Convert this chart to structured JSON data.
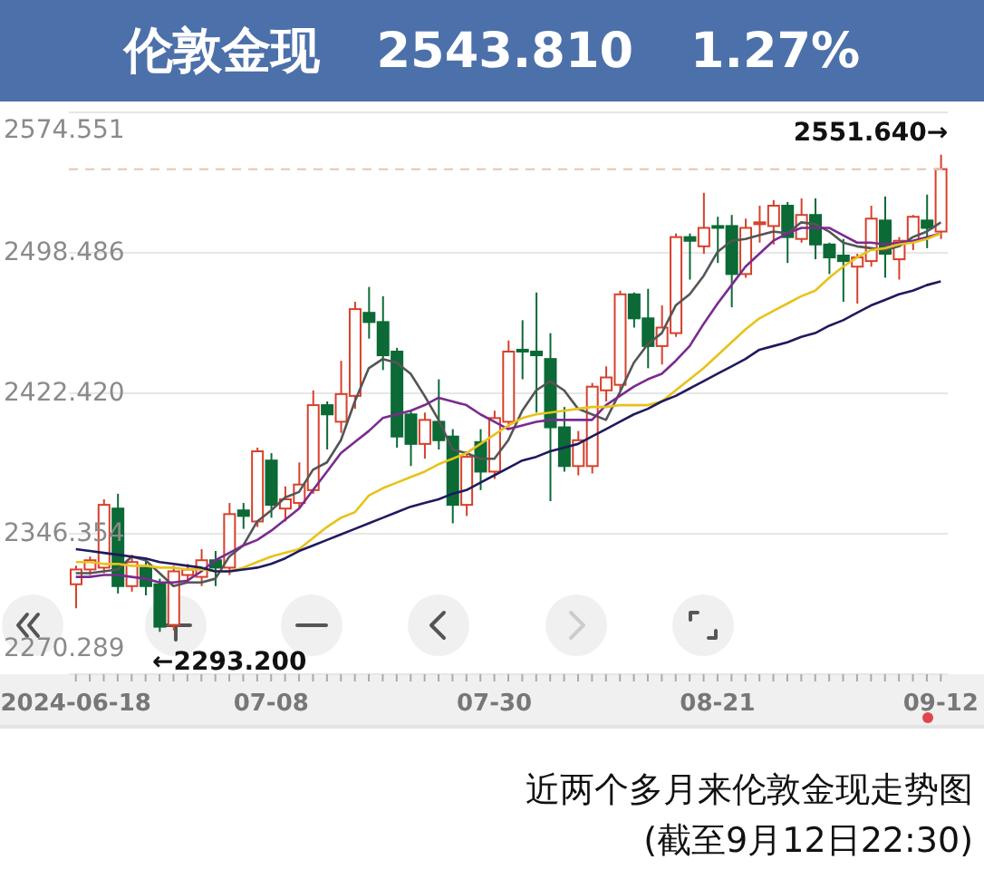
{
  "chart_data": {
    "type": "candlestick",
    "title": "伦敦金现 2543.810 1.27%",
    "categories": [
      "2024-06-18",
      null,
      null,
      null,
      null,
      null,
      null,
      null,
      null,
      null,
      null,
      null,
      null,
      null,
      "07-08",
      null,
      null,
      null,
      null,
      null,
      null,
      null,
      null,
      null,
      null,
      null,
      null,
      null,
      null,
      null,
      "07-30",
      null,
      null,
      null,
      null,
      null,
      null,
      null,
      null,
      null,
      null,
      null,
      null,
      null,
      null,
      null,
      "08-21",
      null,
      null,
      null,
      null,
      null,
      null,
      null,
      null,
      null,
      null,
      null,
      null,
      null,
      null,
      null,
      "09-12"
    ],
    "ohlc": [
      [
        2319,
        2329,
        2306,
        2327
      ],
      [
        2327,
        2334,
        2324,
        2332
      ],
      [
        2328,
        2365,
        2325,
        2362
      ],
      [
        2360,
        2368,
        2314,
        2318
      ],
      [
        2318,
        2335,
        2315,
        2331
      ],
      [
        2328,
        2332,
        2313,
        2318
      ],
      [
        2319,
        2322,
        2293.2,
        2296
      ],
      [
        2297,
        2329,
        2294,
        2326
      ],
      [
        2324,
        2330,
        2320,
        2327
      ],
      [
        2323,
        2338,
        2318,
        2332
      ],
      [
        2332,
        2337,
        2318,
        2328
      ],
      [
        2328,
        2363,
        2324,
        2357
      ],
      [
        2359,
        2363,
        2349,
        2356
      ],
      [
        2353,
        2393,
        2350,
        2391
      ],
      [
        2386,
        2390,
        2355,
        2362
      ],
      [
        2360,
        2372,
        2353,
        2365
      ],
      [
        2363,
        2385,
        2360,
        2373
      ],
      [
        2370,
        2424,
        2368,
        2416
      ],
      [
        2416,
        2418,
        2392,
        2411
      ],
      [
        2407,
        2440,
        2401,
        2422
      ],
      [
        2421,
        2472,
        2414,
        2468
      ],
      [
        2466,
        2480,
        2452,
        2461
      ],
      [
        2461,
        2475,
        2435,
        2443
      ],
      [
        2445,
        2447,
        2393,
        2399
      ],
      [
        2411,
        2413,
        2383,
        2395
      ],
      [
        2395,
        2412,
        2387,
        2408
      ],
      [
        2407,
        2430,
        2392,
        2397
      ],
      [
        2399,
        2403,
        2352,
        2362
      ],
      [
        2362,
        2391,
        2356,
        2388
      ],
      [
        2396,
        2403,
        2370,
        2380
      ],
      [
        2380,
        2413,
        2376,
        2409
      ],
      [
        2407,
        2451,
        2404,
        2445
      ],
      [
        2446,
        2462,
        2430,
        2445
      ],
      [
        2445,
        2477,
        2412,
        2443
      ],
      [
        2441,
        2455,
        2364,
        2404
      ],
      [
        2404,
        2415,
        2380,
        2383
      ],
      [
        2383,
        2402,
        2378,
        2397
      ],
      [
        2383,
        2428,
        2379,
        2426
      ],
      [
        2424,
        2437,
        2418,
        2431
      ],
      [
        2427,
        2478,
        2424,
        2476
      ],
      [
        2476,
        2477,
        2458,
        2463
      ],
      [
        2463,
        2479,
        2436,
        2448
      ],
      [
        2448,
        2470,
        2438,
        2458
      ],
      [
        2455,
        2509,
        2453,
        2507
      ],
      [
        2507,
        2509,
        2484,
        2505
      ],
      [
        2502,
        2531,
        2498,
        2512
      ],
      [
        2513,
        2518,
        2493,
        2512
      ],
      [
        2513,
        2519,
        2469,
        2487
      ],
      [
        2487,
        2517,
        2485,
        2512
      ],
      [
        2514,
        2524,
        2504,
        2515
      ],
      [
        2513,
        2527,
        2503,
        2524
      ],
      [
        2524,
        2526,
        2493,
        2507
      ],
      [
        2506,
        2528,
        2504,
        2519
      ],
      [
        2519,
        2528,
        2495,
        2503
      ],
      [
        2503,
        2504,
        2487,
        2496
      ],
      [
        2497,
        2506,
        2472,
        2494
      ],
      [
        2491,
        2498,
        2471,
        2496
      ],
      [
        2494,
        2524,
        2491,
        2517
      ],
      [
        2516,
        2529,
        2485,
        2498
      ],
      [
        2495,
        2507,
        2484,
        2505
      ],
      [
        2505,
        2519,
        2500,
        2518
      ],
      [
        2516,
        2530,
        2501,
        2512
      ],
      [
        2510,
        2551.64,
        2506,
        2543.81
      ]
    ],
    "colors": [
      "#d7402b",
      "#d7402b",
      "#d7402b",
      "#0b6a35",
      "#d7402b",
      "#0b6a35",
      "#0b6a35",
      "#d7402b",
      "#d7402b",
      "#d7402b",
      "#0b6a35",
      "#d7402b",
      "#0b6a35",
      "#d7402b",
      "#0b6a35",
      "#d7402b",
      "#d7402b",
      "#d7402b",
      "#0b6a35",
      "#d7402b",
      "#d7402b",
      "#0b6a35",
      "#0b6a35",
      "#0b6a35",
      "#0b6a35",
      "#d7402b",
      "#0b6a35",
      "#0b6a35",
      "#d7402b",
      "#0b6a35",
      "#d7402b",
      "#d7402b",
      "#0b6a35",
      "#0b6a35",
      "#0b6a35",
      "#0b6a35",
      "#d7402b",
      "#d7402b",
      "#d7402b",
      "#d7402b",
      "#0b6a35",
      "#0b6a35",
      "#d7402b",
      "#d7402b",
      "#0b6a35",
      "#d7402b",
      "#0b6a35",
      "#0b6a35",
      "#d7402b",
      "#d7402b",
      "#d7402b",
      "#0b6a35",
      "#d7402b",
      "#0b6a35",
      "#0b6a35",
      "#0b6a35",
      "#d7402b",
      "#d7402b",
      "#0b6a35",
      "#d7402b",
      "#d7402b",
      "#0b6a35",
      "#d7402b"
    ],
    "series": [
      {
        "type": "line",
        "color": "#555555",
        "values": [
          2325,
          2325,
          2326,
          2327,
          2334,
          2332,
          2325,
          2318,
          2320,
          2320,
          2322,
          2334,
          2340,
          2353,
          2359,
          2366,
          2369,
          2381,
          2385,
          2397,
          2418,
          2436,
          2441,
          2439,
          2433,
          2421,
          2408,
          2392,
          2390,
          2387,
          2387,
          2397,
          2413,
          2424,
          2429,
          2424,
          2414,
          2411,
          2408,
          2423,
          2439,
          2449,
          2455,
          2470,
          2476,
          2486,
          2499,
          2505,
          2506,
          2508,
          2510,
          2509,
          2515,
          2514,
          2510,
          2504,
          2502,
          2501,
          2500,
          2502,
          2507,
          2510,
          2515
        ]
      },
      {
        "type": "line",
        "color": "#7a2b8f",
        "values": [
          2323,
          2323,
          2324,
          2324,
          2323,
          2322,
          2320,
          2320,
          2321,
          2326,
          2332,
          2336,
          2340,
          2343,
          2348,
          2354,
          2360,
          2370,
          2380,
          2390,
          2396,
          2402,
          2409,
          2411,
          2413,
          2416,
          2420,
          2418,
          2416,
          2411,
          2407,
          2403,
          2405,
          2407,
          2408,
          2408,
          2408,
          2408,
          2416,
          2421,
          2426,
          2430,
          2433,
          2440,
          2448,
          2460,
          2471,
          2481,
          2491,
          2498,
          2505,
          2509,
          2512,
          2512,
          2512,
          2508,
          2504,
          2504,
          2503,
          2504,
          2505,
          2507,
          2509
        ]
      },
      {
        "type": "line",
        "color": "#e8c21a",
        "values": [
          2331,
          2331,
          2330,
          2330,
          2329,
          2329,
          2328,
          2328,
          2327,
          2327,
          2326,
          2326,
          2328,
          2331,
          2334,
          2336,
          2338,
          2344,
          2350,
          2355,
          2358,
          2367,
          2371,
          2374,
          2377,
          2380,
          2384,
          2387,
          2390,
          2395,
          2400,
          2405,
          2409,
          2411,
          2412,
          2413,
          2414,
          2415,
          2415,
          2416,
          2416,
          2416,
          2418,
          2424,
          2430,
          2436,
          2443,
          2450,
          2457,
          2463,
          2467,
          2471,
          2475,
          2478,
          2485,
          2491,
          2496,
          2500,
          2501,
          2503,
          2504,
          2506,
          2509
        ]
      },
      {
        "type": "line",
        "color": "#1f1a5e",
        "values": [
          2338,
          2337,
          2336,
          2335,
          2334,
          2333,
          2331,
          2330,
          2329,
          2328,
          2326,
          2326,
          2327,
          2328,
          2330,
          2333,
          2337,
          2340,
          2343,
          2346,
          2349,
          2352,
          2355,
          2358,
          2361,
          2363,
          2365,
          2368,
          2370,
          2374,
          2378,
          2382,
          2386,
          2388,
          2391,
          2393,
          2395,
          2399,
          2403,
          2407,
          2411,
          2414,
          2418,
          2421,
          2425,
          2429,
          2433,
          2437,
          2441,
          2446,
          2448,
          2450,
          2453,
          2455,
          2459,
          2462,
          2466,
          2470,
          2473,
          2476,
          2478,
          2481,
          2483
        ]
      }
    ],
    "ylim": [
      2270.289,
      2574.551
    ],
    "yticks": [
      2270.289,
      2346.354,
      {
        "value": 2422.42,
        "label": "2422.420"
      },
      2498.486,
      2574.551
    ],
    "grid": "y",
    "ref_lines": [
      {
        "axis": "y",
        "value": 2543.81,
        "color": "#e8c4b0",
        "line_style": "dashed"
      }
    ],
    "annotations": [
      {
        "text": "2551.640→",
        "x": "09-12",
        "y": 2551.64
      },
      "←2293.200",
      "近两个多月来伦敦金现走势图",
      "(截至9月12日22:30)"
    ]
  }
}
